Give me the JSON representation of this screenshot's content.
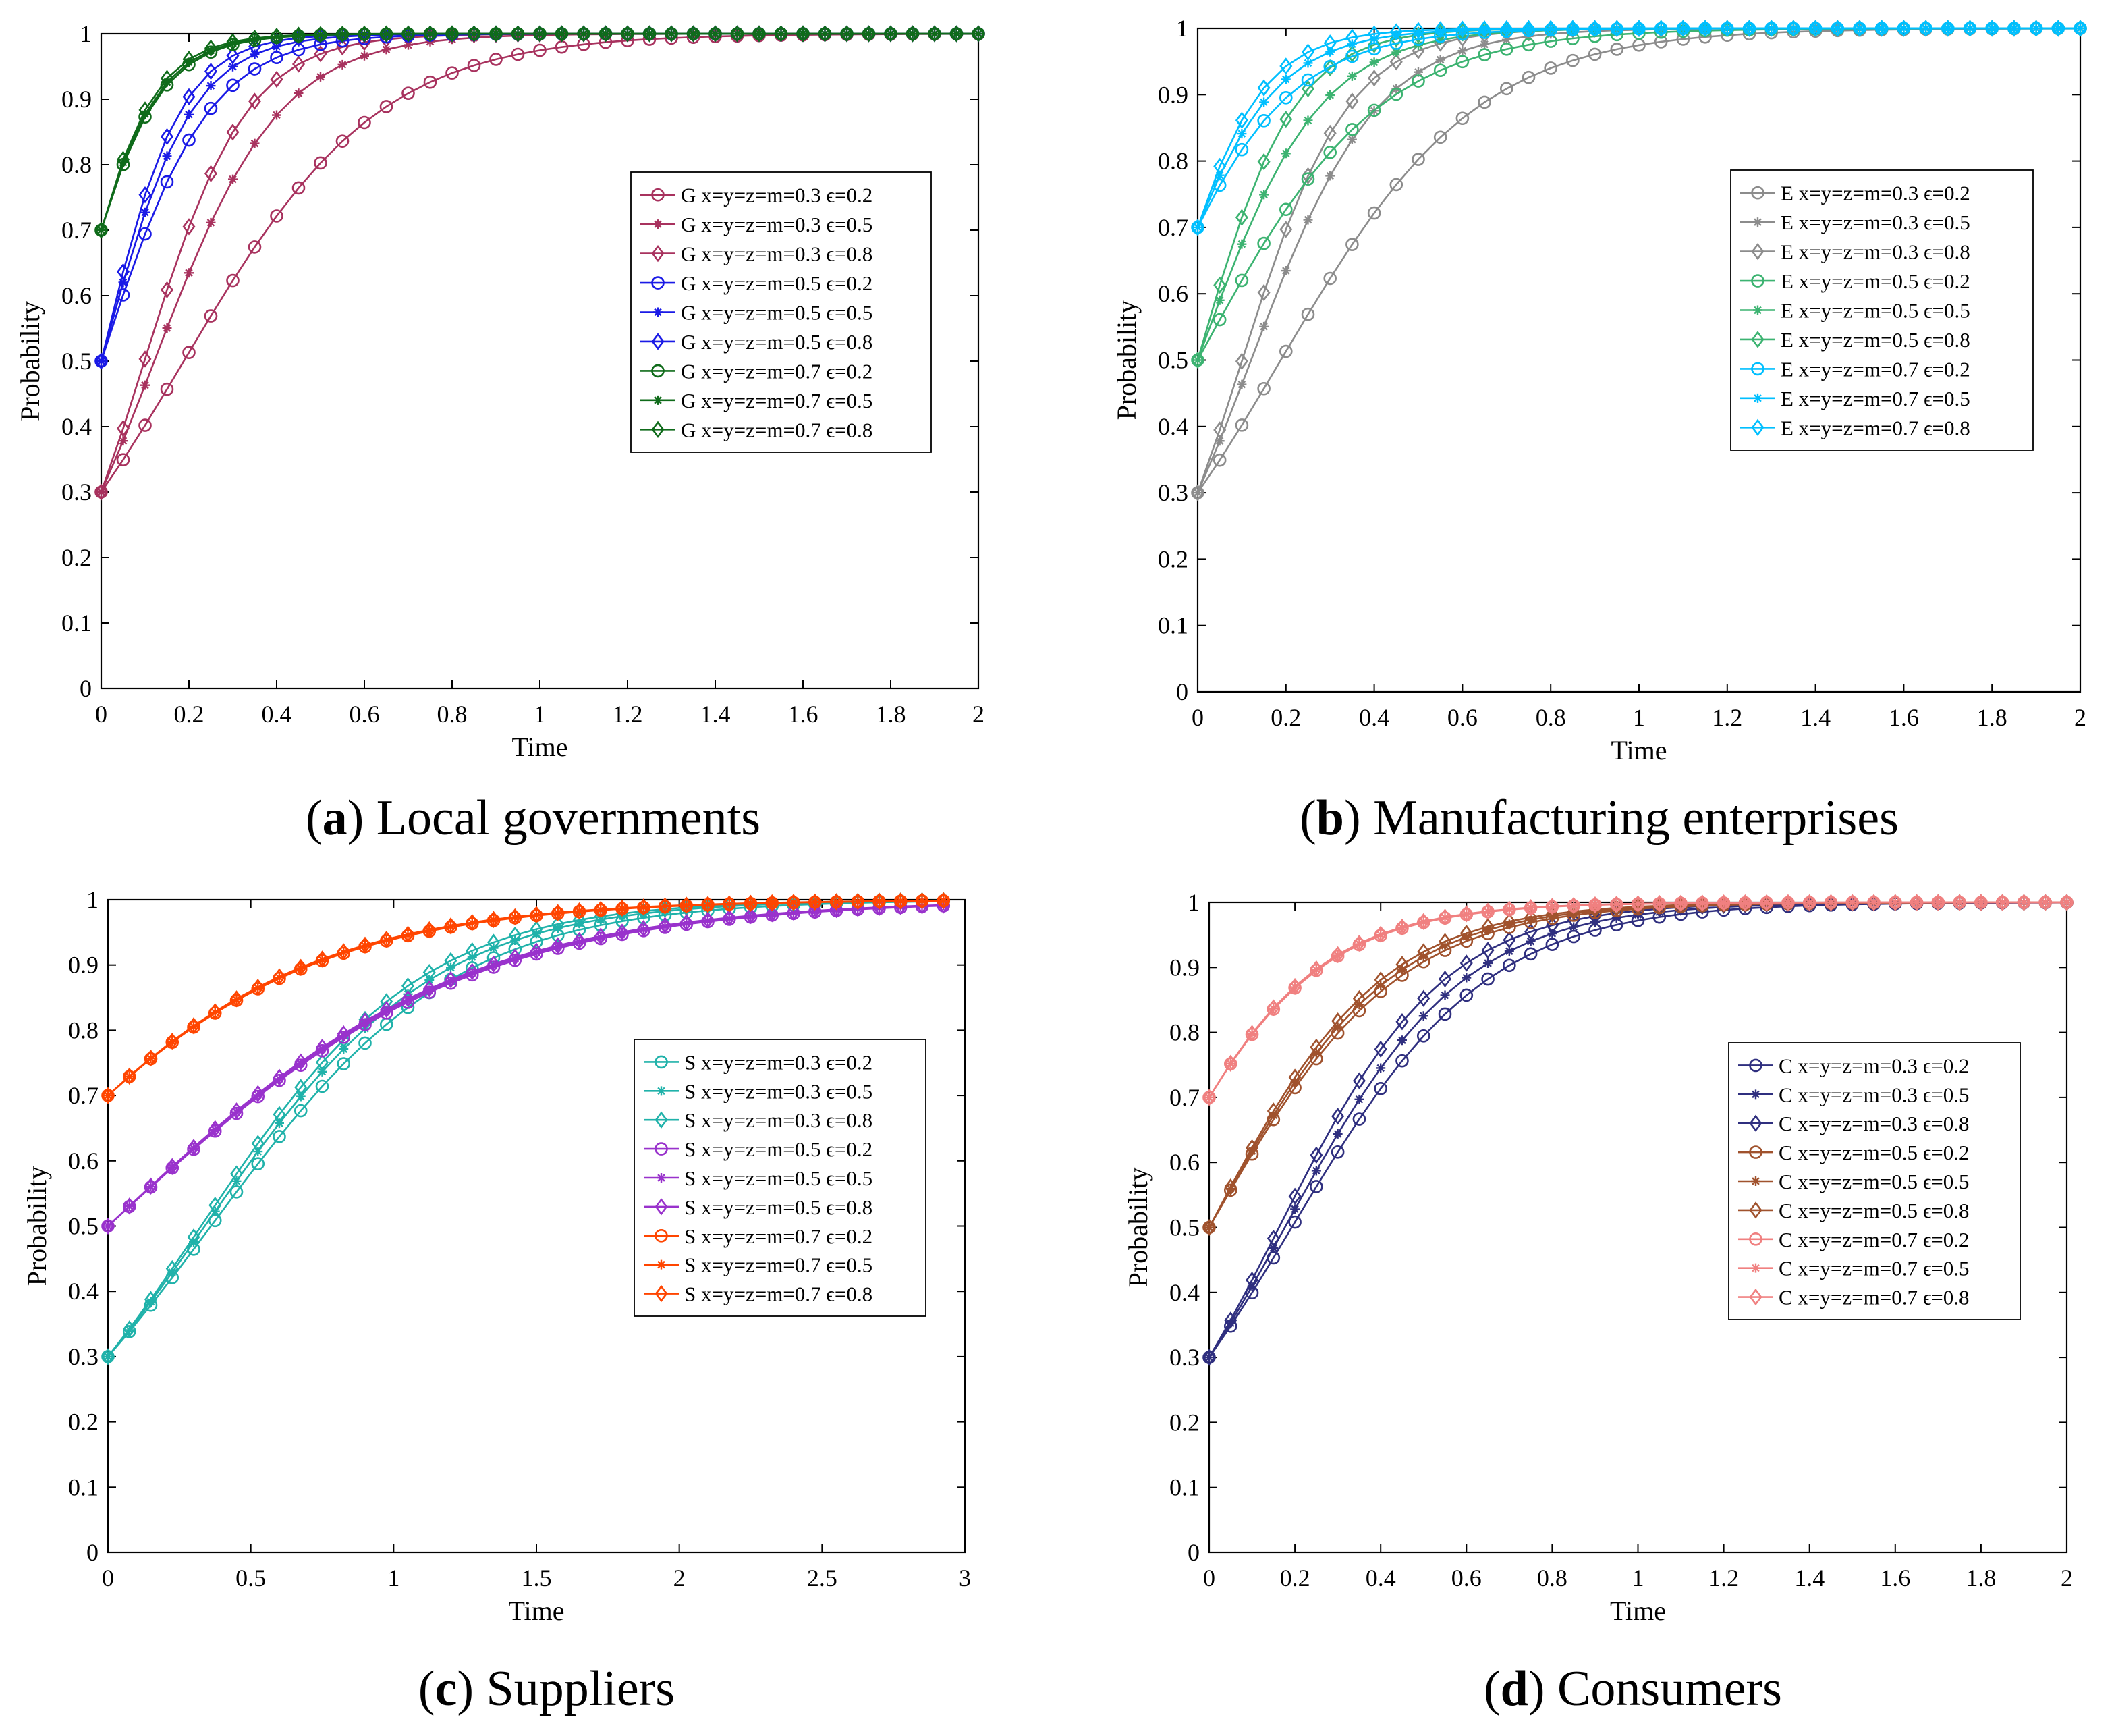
{
  "captions": [
    {
      "letter": "a",
      "text": "Local governments"
    },
    {
      "letter": "b",
      "text": "Manufacturing enterprises"
    },
    {
      "letter": "c",
      "text": "Suppliers"
    },
    {
      "letter": "d",
      "text": "Consumers"
    }
  ],
  "chart_data": [
    {
      "id": "a",
      "type": "line",
      "xlabel": "Time",
      "ylabel": "Probability",
      "xlim": [
        0,
        2
      ],
      "ylim": [
        0,
        1
      ],
      "xticks": [
        "0",
        "0.2",
        "0.4",
        "0.6",
        "0.8",
        "1",
        "1.2",
        "1.4",
        "1.6",
        "1.8",
        "2"
      ],
      "yticks": [
        "0",
        "0.1",
        "0.2",
        "0.3",
        "0.4",
        "0.5",
        "0.6",
        "0.7",
        "0.8",
        "0.9",
        "1"
      ],
      "legend_position": "right-middle",
      "x": [
        0,
        0.05,
        0.1,
        0.15,
        0.2,
        0.25,
        0.3,
        0.35,
        0.4,
        0.45,
        0.5,
        0.55,
        0.6,
        0.65,
        0.7,
        0.75,
        0.8,
        0.85,
        0.9,
        0.95,
        1,
        1.05,
        1.1,
        1.15,
        1.2,
        1.25,
        1.3,
        1.35,
        1.4,
        1.45,
        1.5,
        1.55,
        1.6,
        1.65,
        1.7,
        1.75,
        1.8,
        1.85,
        1.9,
        1.95,
        2
      ],
      "series": [
        {
          "name": "G x=y=z=m=0.3 ϵ=0.2",
          "color": "#a8325e",
          "marker": "circle",
          "start": 0.3,
          "k": 4.5
        },
        {
          "name": "G x=y=z=m=0.3 ϵ=0.5",
          "color": "#a8325e",
          "marker": "star",
          "start": 0.3,
          "k": 7.0
        },
        {
          "name": "G x=y=z=m=0.3 ϵ=0.8",
          "color": "#a8325e",
          "marker": "diamond",
          "start": 0.3,
          "k": 8.6
        },
        {
          "name": "G x=y=z=m=0.5 ϵ=0.2",
          "color": "#1a1ae6",
          "marker": "circle",
          "start": 0.5,
          "k": 8.2
        },
        {
          "name": "G x=y=z=m=0.5 ϵ=0.5",
          "color": "#1a1ae6",
          "marker": "star",
          "start": 0.5,
          "k": 9.8
        },
        {
          "name": "G x=y=z=m=0.5 ϵ=0.8",
          "color": "#1a1ae6",
          "marker": "diamond",
          "start": 0.5,
          "k": 11.2
        },
        {
          "name": "G x=y=z=m=0.7 ϵ=0.2",
          "color": "#0f6b1a",
          "marker": "circle",
          "start": 0.7,
          "k": 10.8
        },
        {
          "name": "G x=y=z=m=0.7 ϵ=0.5",
          "color": "#0f6b1a",
          "marker": "star",
          "start": 0.7,
          "k": 11.2
        },
        {
          "name": "G x=y=z=m=0.7 ϵ=0.8",
          "color": "#0f6b1a",
          "marker": "diamond",
          "start": 0.7,
          "k": 11.8
        }
      ]
    },
    {
      "id": "b",
      "type": "line",
      "xlabel": "Time",
      "ylabel": "Probability",
      "xlim": [
        0,
        2
      ],
      "ylim": [
        0,
        1
      ],
      "xticks": [
        "0",
        "0.2",
        "0.4",
        "0.6",
        "0.8",
        "1",
        "1.2",
        "1.4",
        "1.6",
        "1.8",
        "2"
      ],
      "yticks": [
        "0",
        "0.1",
        "0.2",
        "0.3",
        "0.4",
        "0.5",
        "0.6",
        "0.7",
        "0.8",
        "0.9",
        "1"
      ],
      "legend_position": "right-middle",
      "x": [
        0,
        0.05,
        0.1,
        0.15,
        0.2,
        0.25,
        0.3,
        0.35,
        0.4,
        0.45,
        0.5,
        0.55,
        0.6,
        0.65,
        0.7,
        0.75,
        0.8,
        0.85,
        0.9,
        0.95,
        1,
        1.05,
        1.1,
        1.15,
        1.2,
        1.25,
        1.3,
        1.35,
        1.4,
        1.45,
        1.5,
        1.55,
        1.6,
        1.65,
        1.7,
        1.75,
        1.8,
        1.85,
        1.9,
        1.95,
        2
      ],
      "series": [
        {
          "name": "E x=y=z=m=0.3 ϵ=0.2",
          "color": "#8c8c8c",
          "marker": "circle",
          "start": 0.3,
          "k": 4.5
        },
        {
          "name": "E x=y=z=m=0.3 ϵ=0.5",
          "color": "#8c8c8c",
          "marker": "star",
          "start": 0.3,
          "k": 7.0
        },
        {
          "name": "E x=y=z=m=0.3 ϵ=0.8",
          "color": "#8c8c8c",
          "marker": "diamond",
          "start": 0.3,
          "k": 8.4
        },
        {
          "name": "E x=y=z=m=0.5 ϵ=0.2",
          "color": "#3cb371",
          "marker": "circle",
          "start": 0.5,
          "k": 4.9
        },
        {
          "name": "E x=y=z=m=0.5 ϵ=0.5",
          "color": "#3cb371",
          "marker": "star",
          "start": 0.5,
          "k": 7.3
        },
        {
          "name": "E x=y=z=m=0.5 ϵ=0.8",
          "color": "#3cb371",
          "marker": "diamond",
          "start": 0.5,
          "k": 9.2
        },
        {
          "name": "E x=y=z=m=0.7 ϵ=0.2",
          "color": "#00bfff",
          "marker": "circle",
          "start": 0.7,
          "k": 6.5
        },
        {
          "name": "E x=y=z=m=0.7 ϵ=0.5",
          "color": "#00bfff",
          "marker": "star",
          "start": 0.7,
          "k": 8.2
        },
        {
          "name": "E x=y=z=m=0.7 ϵ=0.8",
          "color": "#00bfff",
          "marker": "diamond",
          "start": 0.7,
          "k": 9.8
        }
      ]
    },
    {
      "id": "c",
      "type": "line",
      "xlabel": "Time",
      "ylabel": "Probability",
      "xlim": [
        0,
        3
      ],
      "ylim": [
        0,
        1
      ],
      "xticks": [
        "0",
        "0.5",
        "1",
        "1.5",
        "2",
        "2.5",
        "3"
      ],
      "yticks": [
        "0",
        "0.1",
        "0.2",
        "0.3",
        "0.4",
        "0.5",
        "0.6",
        "0.7",
        "0.8",
        "0.9",
        "1"
      ],
      "legend_position": "right-middle",
      "x": [
        0,
        0.075,
        0.15,
        0.225,
        0.3,
        0.375,
        0.45,
        0.525,
        0.6,
        0.675,
        0.75,
        0.825,
        0.9,
        0.975,
        1.05,
        1.125,
        1.2,
        1.275,
        1.35,
        1.425,
        1.5,
        1.575,
        1.65,
        1.725,
        1.8,
        1.875,
        1.95,
        2.025,
        2.1,
        2.175,
        2.25,
        2.325,
        2.4,
        2.475,
        2.55,
        2.625,
        2.7,
        2.775,
        2.85,
        2.925
      ],
      "series": [
        {
          "name": "S x=y=z=m=0.3 ϵ=0.2",
          "color": "#20b2aa",
          "marker": "circle",
          "start": 0.3,
          "k": 2.35
        },
        {
          "name": "S x=y=z=m=0.3 ϵ=0.5",
          "color": "#20b2aa",
          "marker": "star",
          "start": 0.3,
          "k": 2.5
        },
        {
          "name": "S x=y=z=m=0.3 ϵ=0.8",
          "color": "#20b2aa",
          "marker": "diamond",
          "start": 0.3,
          "k": 2.6
        },
        {
          "name": "S x=y=z=m=0.5 ϵ=0.2",
          "color": "#9932cc",
          "marker": "circle",
          "start": 0.5,
          "k": 1.6
        },
        {
          "name": "S x=y=z=m=0.5 ϵ=0.5",
          "color": "#9932cc",
          "marker": "star",
          "start": 0.5,
          "k": 1.62
        },
        {
          "name": "S x=y=z=m=0.5 ϵ=0.8",
          "color": "#9932cc",
          "marker": "diamond",
          "start": 0.5,
          "k": 1.64
        },
        {
          "name": "S x=y=z=m=0.7 ϵ=0.2",
          "color": "#ff4500",
          "marker": "circle",
          "start": 0.7,
          "k": 1.9
        },
        {
          "name": "S x=y=z=m=0.7 ϵ=0.5",
          "color": "#ff4500",
          "marker": "star",
          "start": 0.7,
          "k": 1.92
        },
        {
          "name": "S x=y=z=m=0.7 ϵ=0.8",
          "color": "#ff4500",
          "marker": "diamond",
          "start": 0.7,
          "k": 1.94
        }
      ]
    },
    {
      "id": "d",
      "type": "line",
      "xlabel": "Time",
      "ylabel": "Probability",
      "xlim": [
        0,
        2
      ],
      "ylim": [
        0,
        1
      ],
      "xticks": [
        "0",
        "0.2",
        "0.4",
        "0.6",
        "0.8",
        "1",
        "1.2",
        "1.4",
        "1.6",
        "1.8",
        "2"
      ],
      "yticks": [
        "0",
        "0.1",
        "0.2",
        "0.3",
        "0.4",
        "0.5",
        "0.6",
        "0.7",
        "0.8",
        "0.9",
        "1"
      ],
      "legend_position": "right-middle",
      "x": [
        0,
        0.05,
        0.1,
        0.15,
        0.2,
        0.25,
        0.3,
        0.35,
        0.4,
        0.45,
        0.5,
        0.55,
        0.6,
        0.65,
        0.7,
        0.75,
        0.8,
        0.85,
        0.9,
        0.95,
        1,
        1.05,
        1.1,
        1.15,
        1.2,
        1.25,
        1.3,
        1.35,
        1.4,
        1.45,
        1.5,
        1.55,
        1.6,
        1.65,
        1.7,
        1.75,
        1.8,
        1.85,
        1.9,
        1.95,
        2
      ],
      "series": [
        {
          "name": "C x=y=z=m=0.3 ϵ=0.2",
          "color": "#2f2f7f",
          "marker": "circle",
          "start": 0.3,
          "k": 4.4
        },
        {
          "name": "C x=y=z=m=0.3 ϵ=0.5",
          "color": "#2f2f7f",
          "marker": "star",
          "start": 0.3,
          "k": 4.8
        },
        {
          "name": "C x=y=z=m=0.3 ϵ=0.8",
          "color": "#2f2f7f",
          "marker": "diamond",
          "start": 0.3,
          "k": 5.2
        },
        {
          "name": "C x=y=z=m=0.5 ϵ=0.2",
          "color": "#a0522d",
          "marker": "circle",
          "start": 0.5,
          "k": 4.6
        },
        {
          "name": "C x=y=z=m=0.5 ϵ=0.5",
          "color": "#a0522d",
          "marker": "star",
          "start": 0.5,
          "k": 4.8
        },
        {
          "name": "C x=y=z=m=0.5 ϵ=0.8",
          "color": "#a0522d",
          "marker": "diamond",
          "start": 0.5,
          "k": 5.0
        },
        {
          "name": "C x=y=z=m=0.7 ϵ=0.2",
          "color": "#f08080",
          "marker": "circle",
          "start": 0.7,
          "k": 5.2
        },
        {
          "name": "C x=y=z=m=0.7 ϵ=0.5",
          "color": "#f08080",
          "marker": "star",
          "start": 0.7,
          "k": 5.25
        },
        {
          "name": "C x=y=z=m=0.7 ϵ=0.8",
          "color": "#f08080",
          "marker": "diamond",
          "start": 0.7,
          "k": 5.3
        }
      ]
    }
  ]
}
